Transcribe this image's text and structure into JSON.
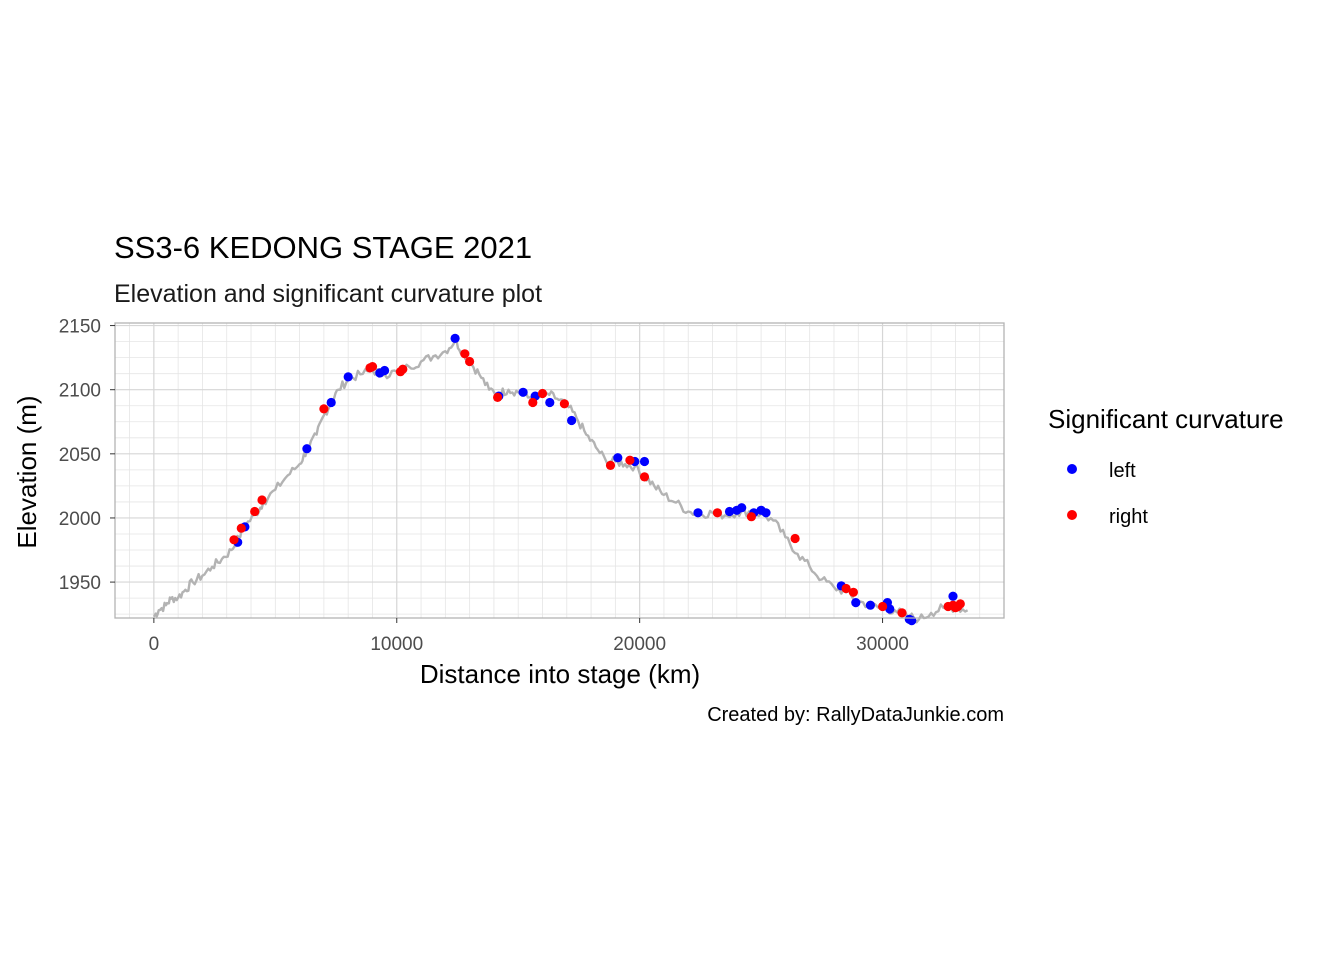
{
  "chart_data": {
    "type": "scatter",
    "title": "SS3-6 KEDONG STAGE 2021",
    "subtitle": "Elevation and significant curvature plot",
    "xlabel": "Distance into stage (km)",
    "ylabel": "Elevation (m)",
    "caption": "Created by: RallyDataJunkie.com",
    "xlim": [
      -1600,
      35000
    ],
    "ylim": [
      1922,
      2152
    ],
    "x_ticks": [
      0,
      10000,
      20000,
      30000
    ],
    "x_tick_labels": [
      "0",
      "10000",
      "20000",
      "30000"
    ],
    "y_ticks": [
      1950,
      2000,
      2050,
      2100,
      2150
    ],
    "y_tick_labels": [
      "1950",
      "2000",
      "2050",
      "2100",
      "2150"
    ],
    "grid": true,
    "legend": {
      "title": "Significant curvature",
      "placement": "right"
    },
    "colors": {
      "left": "#0000ff",
      "right": "#ff0000",
      "line": "#b3b3b3",
      "grid": "#e5e5e5",
      "panel_border": "#b3b3b3"
    },
    "elevation_line": {
      "x": [
        0,
        200,
        500,
        700,
        1000,
        1300,
        1600,
        2000,
        2400,
        2800,
        3200,
        3500,
        3800,
        4200,
        4500,
        5000,
        5500,
        6000,
        6300,
        6700,
        7000,
        7300,
        7600,
        8000,
        8500,
        9000,
        9500,
        10000,
        10500,
        11000,
        11500,
        12000,
        12400,
        12700,
        13000,
        13400,
        13800,
        14200,
        14600,
        15000,
        15400,
        15800,
        16200,
        16600,
        17000,
        17400,
        17800,
        18200,
        18600,
        19000,
        19400,
        19800,
        20200,
        20600,
        21000,
        21500,
        22000,
        22500,
        23000,
        23500,
        24000,
        24500,
        25000,
        25500,
        26000,
        26500,
        27000,
        27500,
        28000,
        28500,
        29000,
        29500,
        30000,
        30500,
        31000,
        31500,
        32000,
        32500,
        33000,
        33500
      ],
      "y": [
        1923,
        1928,
        1932,
        1937,
        1938,
        1944,
        1950,
        1955,
        1962,
        1968,
        1975,
        1985,
        1995,
        2003,
        2012,
        2022,
        2033,
        2042,
        2053,
        2065,
        2080,
        2090,
        2100,
        2108,
        2112,
        2115,
        2112,
        2114,
        2118,
        2122,
        2126,
        2130,
        2138,
        2130,
        2122,
        2112,
        2100,
        2097,
        2100,
        2098,
        2094,
        2093,
        2097,
        2093,
        2088,
        2078,
        2065,
        2055,
        2045,
        2044,
        2042,
        2040,
        2033,
        2025,
        2018,
        2012,
        2005,
        2003,
        2004,
        2002,
        2004,
        2005,
        2003,
        1998,
        1985,
        1972,
        1962,
        1952,
        1946,
        1942,
        1935,
        1932,
        1929,
        1928,
        1924,
        1921,
        1926,
        1930,
        1930,
        1928
      ]
    },
    "series": [
      {
        "name": "left",
        "color": "#0000ff",
        "x": [
          3450,
          3750,
          6300,
          7300,
          8000,
          9300,
          9500,
          12400,
          14200,
          15200,
          15700,
          16300,
          17200,
          19100,
          19800,
          20200,
          22400,
          23700,
          24000,
          24200,
          24700,
          25000,
          25200,
          28300,
          28900,
          29500,
          30200,
          30300,
          31100,
          31200,
          32900
        ],
        "y": [
          1981,
          1993,
          2054,
          2090,
          2110,
          2113,
          2115,
          2140,
          2095,
          2098,
          2095,
          2090,
          2076,
          2047,
          2044,
          2044,
          2004,
          2005,
          2006,
          2008,
          2004,
          2006,
          2004,
          1947,
          1934,
          1932,
          1934,
          1929,
          1921,
          1920,
          1939
        ]
      },
      {
        "name": "right",
        "color": "#ff0000",
        "x": [
          3300,
          3600,
          4150,
          4450,
          7000,
          8900,
          9000,
          10150,
          10250,
          12800,
          13000,
          14150,
          15600,
          16000,
          16900,
          18800,
          19600,
          20200,
          23200,
          24600,
          26400,
          28500,
          28800,
          30000,
          30800,
          32700,
          32900,
          33000,
          33100,
          33200
        ],
        "y": [
          1983,
          1992,
          2005,
          2014,
          2085,
          2117,
          2118,
          2114,
          2116,
          2128,
          2122,
          2094,
          2090,
          2097,
          2089,
          2041,
          2045,
          2032,
          2004,
          2001,
          1984,
          1945,
          1942,
          1931,
          1926,
          1931,
          1932,
          1930,
          1931,
          1933
        ]
      }
    ]
  }
}
